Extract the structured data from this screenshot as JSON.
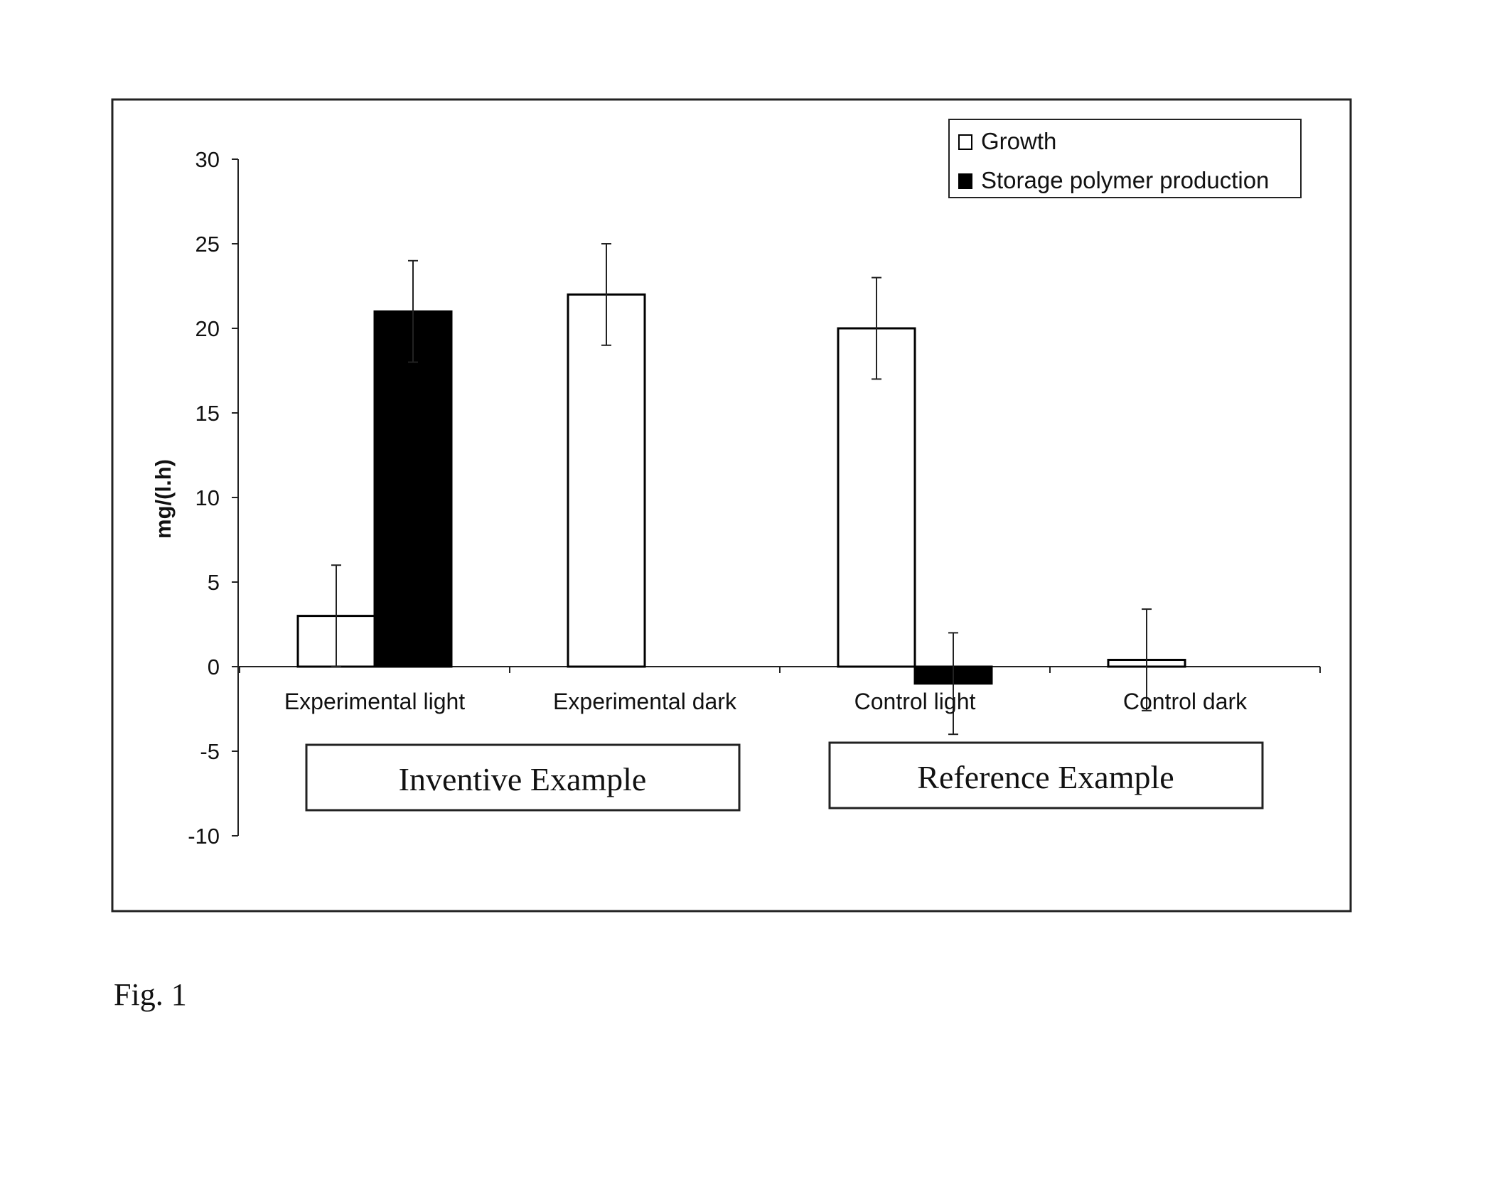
{
  "figure_caption": "Fig. 1",
  "chart_data": {
    "type": "bar",
    "title": "",
    "xlabel": "",
    "ylabel": "mg/(l.h)",
    "ylim": [
      -10,
      30
    ],
    "yticks": [
      30,
      25,
      20,
      15,
      10,
      5,
      0,
      -5,
      -10
    ],
    "ytick_labels": [
      "30",
      "25",
      "20",
      "15",
      "10",
      "5",
      "0",
      "-5",
      "-10"
    ],
    "categories": [
      "Experimental light",
      "Experimental dark",
      "Control light",
      "Control dark"
    ],
    "series": [
      {
        "name": "Growth",
        "color": "#ffffff",
        "values": [
          3,
          22,
          20,
          0.4
        ],
        "errors": [
          3,
          3,
          3,
          3
        ]
      },
      {
        "name": "Storage polymer production",
        "color": "#000000",
        "values": [
          21,
          0,
          -1,
          0
        ],
        "errors": [
          3,
          0,
          3,
          0
        ]
      }
    ],
    "legend_position": "top-right",
    "grid": false,
    "groups": [
      {
        "label": "Inventive Example",
        "categories": [
          "Experimental light",
          "Experimental dark"
        ]
      },
      {
        "label": "Reference Example",
        "categories": [
          "Control light",
          "Control dark"
        ]
      }
    ]
  }
}
